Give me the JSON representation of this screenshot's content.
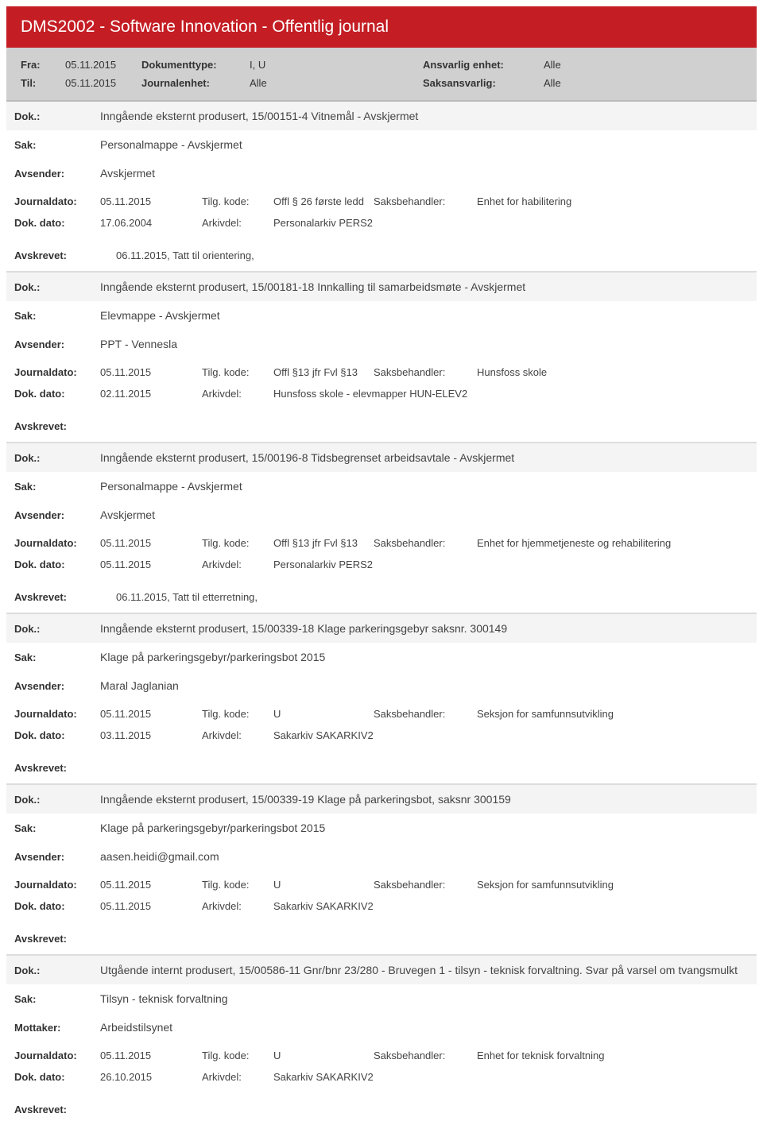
{
  "title": "DMS2002 - Software Innovation - Offentlig journal",
  "filter": {
    "fra_label": "Fra:",
    "fra": "05.11.2015",
    "til_label": "Til:",
    "til": "05.11.2015",
    "doktype_label": "Dokumenttype:",
    "doktype": "I, U",
    "journalenhet_label": "Journalenhet:",
    "journalenhet": "Alle",
    "ansvarlig_label": "Ansvarlig enhet:",
    "ansvarlig": "Alle",
    "saksansvarlig_label": "Saksansvarlig:",
    "saksansvarlig": "Alle"
  },
  "labels": {
    "dok": "Dok.:",
    "sak": "Sak:",
    "avsender": "Avsender:",
    "mottaker": "Mottaker:",
    "journaldato": "Journaldato:",
    "dokdato": "Dok. dato:",
    "tilgkode": "Tilg. kode:",
    "arkivdel": "Arkivdel:",
    "saksbehandler": "Saksbehandler:",
    "avskrevet": "Avskrevet:"
  },
  "entries": [
    {
      "dok": "Inngående eksternt produsert, 15/00151-4 Vitnemål - Avskjermet",
      "sak": "Personalmappe - Avskjermet",
      "party_label": "Avsender:",
      "party": "Avskjermet",
      "journaldato": "05.11.2015",
      "tilgkode": "Offl § 26 første ledd",
      "saksbehandler": "Enhet for habilitering",
      "dokdato": "17.06.2004",
      "arkivdel": "Personalarkiv PERS2",
      "avskrevet": "06.11.2015, Tatt til orientering,"
    },
    {
      "dok": "Inngående eksternt produsert, 15/00181-18 Innkalling til samarbeidsmøte - Avskjermet",
      "sak": "Elevmappe - Avskjermet",
      "party_label": "Avsender:",
      "party": "PPT - Vennesla",
      "journaldato": "05.11.2015",
      "tilgkode": "Offl §13 jfr Fvl §13",
      "saksbehandler": "Hunsfoss skole",
      "dokdato": "02.11.2015",
      "arkivdel": "Hunsfoss skole - elevmapper HUN-ELEV2",
      "avskrevet": ""
    },
    {
      "dok": "Inngående eksternt produsert, 15/00196-8 Tidsbegrenset arbeidsavtale - Avskjermet",
      "sak": "Personalmappe - Avskjermet",
      "party_label": "Avsender:",
      "party": "Avskjermet",
      "journaldato": "05.11.2015",
      "tilgkode": "Offl §13 jfr Fvl §13",
      "saksbehandler": "Enhet for hjemmetjeneste og rehabilitering",
      "dokdato": "05.11.2015",
      "arkivdel": "Personalarkiv PERS2",
      "avskrevet": "06.11.2015, Tatt til etterretning,"
    },
    {
      "dok": "Inngående eksternt produsert, 15/00339-18 Klage parkeringsgebyr saksnr. 300149",
      "sak": "Klage på parkeringsgebyr/parkeringsbot 2015",
      "party_label": "Avsender:",
      "party": "Maral Jaglanian",
      "journaldato": "05.11.2015",
      "tilgkode": "U",
      "saksbehandler": "Seksjon for samfunnsutvikling",
      "dokdato": "03.11.2015",
      "arkivdel": "Sakarkiv SAKARKIV2",
      "avskrevet": ""
    },
    {
      "dok": "Inngående eksternt produsert, 15/00339-19 Klage på parkeringsbot, saksnr 300159",
      "sak": "Klage på parkeringsgebyr/parkeringsbot 2015",
      "party_label": "Avsender:",
      "party": "aasen.heidi@gmail.com",
      "journaldato": "05.11.2015",
      "tilgkode": "U",
      "saksbehandler": "Seksjon for samfunnsutvikling",
      "dokdato": "05.11.2015",
      "arkivdel": "Sakarkiv SAKARKIV2",
      "avskrevet": ""
    },
    {
      "dok": "Utgående internt produsert, 15/00586-11 Gnr/bnr 23/280 - Bruvegen 1 - tilsyn - teknisk forvaltning. Svar på varsel om tvangsmulkt",
      "sak": "Tilsyn - teknisk forvaltning",
      "party_label": "Mottaker:",
      "party": "Arbeidstilsynet",
      "journaldato": "05.11.2015",
      "tilgkode": "U",
      "saksbehandler": "Enhet for teknisk forvaltning",
      "dokdato": "26.10.2015",
      "arkivdel": "Sakarkiv SAKARKIV2",
      "avskrevet": ""
    }
  ]
}
